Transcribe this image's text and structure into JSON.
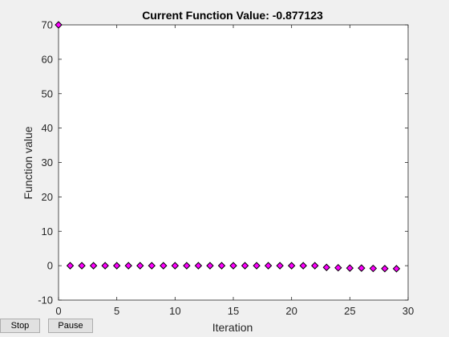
{
  "window": {
    "title_prefix": "Current Function Value: ",
    "current_value": "-0.877123"
  },
  "buttons": {
    "stop_label": "Stop",
    "pause_label": "Pause"
  },
  "chart_data": {
    "type": "scatter",
    "title": "Current Function Value: -0.877123",
    "xlabel": "Iteration",
    "ylabel": "Function value",
    "xlim": [
      0,
      30
    ],
    "ylim": [
      -10,
      70
    ],
    "xticks": [
      0,
      5,
      10,
      15,
      20,
      25,
      30
    ],
    "yticks": [
      -10,
      0,
      10,
      20,
      30,
      40,
      50,
      60,
      70
    ],
    "grid": false,
    "marker": "diamond",
    "marker_color": "#ff00ff",
    "x": [
      0,
      1,
      2,
      3,
      4,
      5,
      6,
      7,
      8,
      9,
      10,
      11,
      12,
      13,
      14,
      15,
      16,
      17,
      18,
      19,
      20,
      21,
      22,
      23,
      24,
      25,
      26,
      27,
      28,
      29
    ],
    "y": [
      70,
      0,
      0,
      0,
      0,
      0,
      0,
      0,
      0,
      0,
      0,
      0,
      0,
      0,
      0,
      0,
      0,
      0,
      0,
      0,
      0,
      0,
      0,
      -0.5,
      -0.6,
      -0.7,
      -0.7,
      -0.8,
      -0.85,
      -0.877123
    ]
  }
}
